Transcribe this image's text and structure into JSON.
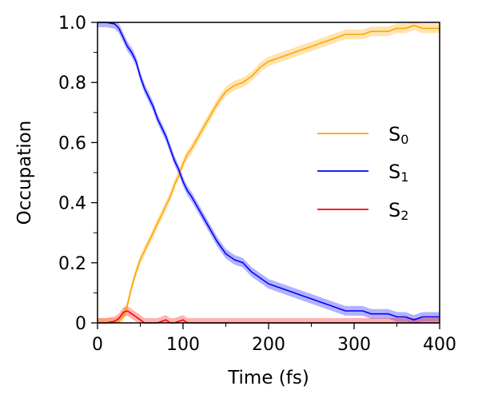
{
  "chart_data": {
    "type": "line",
    "title": "",
    "xlabel": "Time (fs)",
    "ylabel": "Occupation",
    "xlim": [
      0,
      400
    ],
    "ylim": [
      0,
      1
    ],
    "grid": false,
    "legend_position": "right",
    "x_ticks": [
      "0",
      "100",
      "200",
      "300",
      "400"
    ],
    "y_ticks": [
      "0",
      "0.2",
      "0.4",
      "0.6",
      "0.8",
      "1.0"
    ],
    "x_tick_values": [
      0,
      100,
      200,
      300,
      400
    ],
    "y_tick_values": [
      0,
      0.2,
      0.4,
      0.6,
      0.8,
      1.0
    ],
    "x_minor_tick_values": [
      50,
      150,
      250,
      350
    ],
    "y_minor_tick_values": [
      0.1,
      0.3,
      0.5,
      0.7,
      0.9
    ],
    "x": [
      0,
      10,
      20,
      25,
      30,
      35,
      40,
      45,
      50,
      55,
      60,
      65,
      70,
      75,
      80,
      85,
      90,
      95,
      100,
      105,
      110,
      120,
      130,
      140,
      150,
      160,
      170,
      180,
      190,
      200,
      210,
      220,
      230,
      240,
      250,
      260,
      270,
      280,
      290,
      300,
      310,
      320,
      330,
      340,
      350,
      360,
      370,
      380,
      390,
      400
    ],
    "band_halfwidth": 0.016,
    "series": [
      {
        "name": "S",
        "subscript": "0",
        "color": "#FFA500",
        "values": [
          0.0,
          0.0,
          0.0,
          0.005,
          0.02,
          0.06,
          0.12,
          0.17,
          0.21,
          0.24,
          0.27,
          0.3,
          0.33,
          0.36,
          0.39,
          0.42,
          0.46,
          0.49,
          0.53,
          0.56,
          0.58,
          0.63,
          0.68,
          0.73,
          0.77,
          0.79,
          0.8,
          0.82,
          0.85,
          0.87,
          0.88,
          0.89,
          0.9,
          0.91,
          0.92,
          0.93,
          0.94,
          0.95,
          0.96,
          0.96,
          0.96,
          0.97,
          0.97,
          0.97,
          0.98,
          0.98,
          0.99,
          0.98,
          0.98,
          0.98
        ]
      },
      {
        "name": "S",
        "subscript": "1",
        "color": "#0000FF",
        "values": [
          1.0,
          1.0,
          0.995,
          0.98,
          0.95,
          0.92,
          0.9,
          0.87,
          0.82,
          0.78,
          0.75,
          0.72,
          0.68,
          0.65,
          0.62,
          0.58,
          0.54,
          0.51,
          0.47,
          0.44,
          0.42,
          0.37,
          0.32,
          0.27,
          0.23,
          0.21,
          0.2,
          0.17,
          0.15,
          0.13,
          0.12,
          0.11,
          0.1,
          0.09,
          0.08,
          0.07,
          0.06,
          0.05,
          0.04,
          0.04,
          0.04,
          0.03,
          0.03,
          0.03,
          0.02,
          0.02,
          0.01,
          0.02,
          0.02,
          0.02
        ]
      },
      {
        "name": "S",
        "subscript": "2",
        "color": "#FF0000",
        "values": [
          0.0,
          0.0,
          0.005,
          0.015,
          0.035,
          0.04,
          0.03,
          0.02,
          0.01,
          0.0,
          0.0,
          0.0,
          0.0,
          0.005,
          0.01,
          0.0,
          0.0,
          0.005,
          0.01,
          0.0,
          0.0,
          0.0,
          0.0,
          0.0,
          0.0,
          0.0,
          0.0,
          0.0,
          0.0,
          0.0,
          0.0,
          0.0,
          0.0,
          0.0,
          0.0,
          0.0,
          0.0,
          0.0,
          0.0,
          0.0,
          0.0,
          0.0,
          0.0,
          0.0,
          0.0,
          0.0,
          0.0,
          0.0,
          0.0,
          0.0
        ]
      }
    ]
  }
}
